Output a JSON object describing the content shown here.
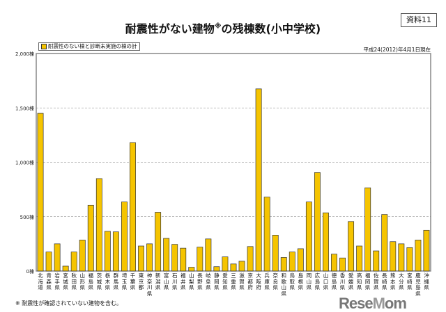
{
  "document_label": "資料11",
  "chart_data": {
    "type": "bar",
    "title": "耐震性がない建物",
    "title_mark": "※",
    "title_suffix": "の残棟数(小中学校)",
    "date_note": "平成24(2012)年4月1日現在",
    "legend": [
      {
        "name": "耐震性のない棟と診断未実施の棟の計",
        "color": "#F5C400"
      }
    ],
    "legend_position": "top-left",
    "ylim": [
      0,
      2000
    ],
    "yticks": [
      "0棟",
      "500棟",
      "1,000棟",
      "1,500棟",
      "2,000棟"
    ],
    "ytick_values": [
      0,
      500,
      1000,
      1500,
      2000
    ],
    "grid": "horizontal dashed",
    "categories": [
      "北海道",
      "青森県",
      "岩手県",
      "宮城県",
      "秋田県",
      "山形県",
      "福島県",
      "茨城県",
      "栃木県",
      "群馬県",
      "埼玉県",
      "千葉県",
      "東京都",
      "神奈川県",
      "新潟県",
      "富山県",
      "石川県",
      "福井県",
      "山梨県",
      "長野県",
      "岐阜県",
      "静岡県",
      "愛知県",
      "三重県",
      "滋賀県",
      "京都府",
      "大阪府",
      "兵庫県",
      "奈良県",
      "和歌山県",
      "鳥取県",
      "島根県",
      "岡山県",
      "広島県",
      "山口県",
      "徳島県",
      "香川県",
      "愛媛県",
      "高知県",
      "福岡県",
      "佐賀県",
      "長崎県",
      "熊本県",
      "大分県",
      "宮崎県",
      "鹿児島県",
      "沖縄県"
    ],
    "series": [
      {
        "name": "耐震性のない棟と診断未実施の棟の計",
        "values": [
          1450,
          175,
          250,
          45,
          175,
          285,
          605,
          850,
          365,
          360,
          635,
          1180,
          230,
          250,
          540,
          300,
          245,
          210,
          35,
          220,
          295,
          40,
          130,
          65,
          90,
          225,
          1675,
          680,
          330,
          125,
          175,
          205,
          635,
          905,
          535,
          155,
          120,
          455,
          230,
          765,
          185,
          520,
          270,
          250,
          215,
          285,
          375
        ]
      }
    ]
  },
  "footnote": "※ 耐震性が確認されていない建物を含む。",
  "watermark": "ReseMom"
}
